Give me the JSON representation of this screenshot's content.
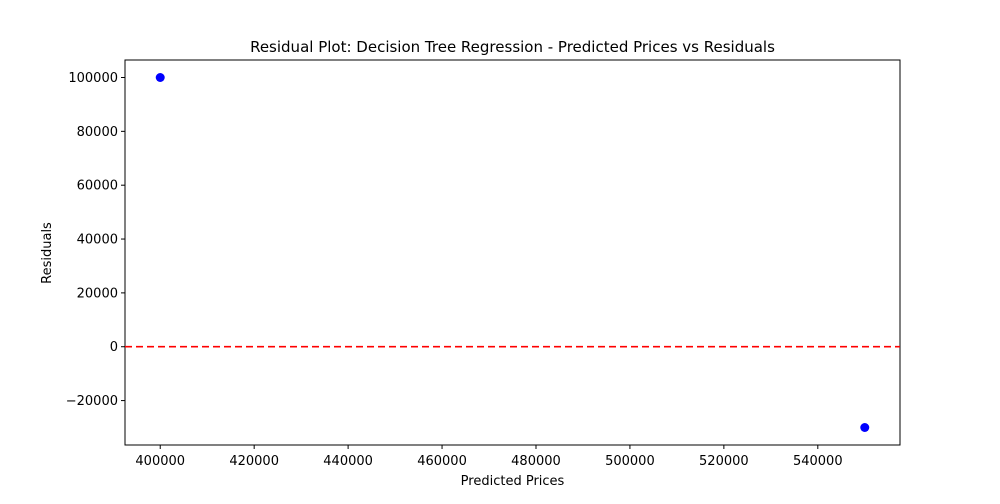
{
  "chart_data": {
    "type": "scatter",
    "title": "Residual Plot: Decision Tree Regression - Predicted Prices vs Residuals",
    "xlabel": "Predicted Prices",
    "ylabel": "Residuals",
    "xlim": [
      392500,
      557500
    ],
    "ylim": [
      -36500,
      106500
    ],
    "x_ticks": [
      400000,
      420000,
      440000,
      460000,
      480000,
      500000,
      520000,
      540000
    ],
    "x_tick_labels": [
      "400000",
      "420000",
      "440000",
      "460000",
      "480000",
      "500000",
      "520000",
      "540000"
    ],
    "y_ticks": [
      -20000,
      0,
      20000,
      40000,
      60000,
      80000,
      100000
    ],
    "y_tick_labels": [
      "−20000",
      "0",
      "20000",
      "40000",
      "60000",
      "80000",
      "100000"
    ],
    "series": [
      {
        "x": [
          400000,
          550000
        ],
        "y": [
          100000,
          -30000
        ],
        "color": "#0000ff"
      }
    ],
    "reference_line": {
      "y": 0,
      "color": "#ff0000",
      "style": "dashed"
    },
    "grid": false,
    "legend": "none"
  }
}
